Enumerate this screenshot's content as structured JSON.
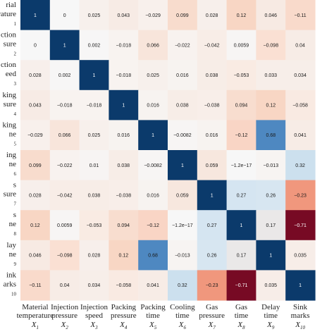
{
  "chart_data": {
    "type": "heatmap",
    "title": "",
    "colors": {
      "positive_max": "#0b3a6b",
      "neutral": "#f7f7f7",
      "negative_max": "#67001f"
    },
    "x_labels": [
      {
        "lines": [
          "Material",
          "temperature"
        ],
        "symbol": "X",
        "sub": "1"
      },
      {
        "lines": [
          "Injection",
          "pressure"
        ],
        "symbol": "X",
        "sub": "2"
      },
      {
        "lines": [
          "Injection",
          "speed"
        ],
        "symbol": "X",
        "sub": "3"
      },
      {
        "lines": [
          "Packing",
          "pressure"
        ],
        "symbol": "X",
        "sub": "4"
      },
      {
        "lines": [
          "Packing",
          "time"
        ],
        "symbol": "X",
        "sub": "5"
      },
      {
        "lines": [
          "Cooling",
          "time"
        ],
        "symbol": "X",
        "sub": "6"
      },
      {
        "lines": [
          "Gas",
          "pressure"
        ],
        "symbol": "X",
        "sub": "7"
      },
      {
        "lines": [
          "Gas",
          "time"
        ],
        "symbol": "X",
        "sub": "8"
      },
      {
        "lines": [
          "Delay",
          "time"
        ],
        "symbol": "X",
        "sub": "9"
      },
      {
        "lines": [
          "Sink",
          "marks"
        ],
        "symbol": "X",
        "sub": "10"
      }
    ],
    "y_labels": [
      {
        "lines": [
          "rial",
          "rature",
          "1"
        ]
      },
      {
        "lines": [
          "ction",
          "sure",
          "2"
        ]
      },
      {
        "lines": [
          "ction",
          "eed",
          "3"
        ]
      },
      {
        "lines": [
          "king",
          "sure",
          "4"
        ]
      },
      {
        "lines": [
          "king",
          "ne",
          "5"
        ]
      },
      {
        "lines": [
          "ing",
          "ne",
          "6"
        ]
      },
      {
        "lines": [
          "s",
          "sure",
          "7"
        ]
      },
      {
        "lines": [
          "s",
          "ne",
          "8"
        ]
      },
      {
        "lines": [
          "lay",
          "ne",
          "9"
        ]
      },
      {
        "lines": [
          "ink",
          "arks",
          "10"
        ]
      }
    ],
    "matrix": [
      [
        1,
        0,
        0.025,
        0.043,
        -0.029,
        0.099,
        0.028,
        0.12,
        0.046,
        -0.11
      ],
      [
        0,
        1,
        0.002,
        -0.018,
        0.066,
        -0.022,
        -0.042,
        0.0059,
        -0.098,
        0.04
      ],
      [
        0.028,
        0.002,
        1,
        -0.018,
        0.025,
        0.016,
        0.038,
        -0.053,
        0.033,
        0.034
      ],
      [
        0.043,
        -0.018,
        -0.018,
        1,
        0.016,
        0.038,
        -0.038,
        0.094,
        0.12,
        -0.058
      ],
      [
        -0.029,
        0.066,
        0.025,
        0.016,
        1,
        -0.0082,
        0.016,
        -0.12,
        0.68,
        0.041
      ],
      [
        0.099,
        -0.022,
        0.01,
        0.038,
        -0.0082,
        1,
        0.059,
        -1.2e-17,
        -0.013,
        0.32
      ],
      [
        0.028,
        -0.042,
        0.038,
        -0.038,
        0.016,
        0.059,
        1,
        0.27,
        0.26,
        -0.23
      ],
      [
        0.12,
        0.0059,
        -0.053,
        0.094,
        -0.12,
        -1.2e-17,
        0.27,
        1,
        0.17,
        -0.71
      ],
      [
        0.046,
        -0.098,
        0.028,
        0.12,
        0.68,
        -0.013,
        0.26,
        0.17,
        1,
        0.035
      ],
      [
        -0.11,
        0.04,
        0.034,
        -0.058,
        0.041,
        0.32,
        -0.23,
        -0.71,
        0.035,
        1
      ]
    ],
    "display": [
      [
        "1",
        "0",
        "0.025",
        "0.043",
        "−0.029",
        "0.099",
        "0.028",
        "0.12",
        "0.046",
        "−0.11"
      ],
      [
        "0",
        "1",
        "0.002",
        "−0.018",
        "0.066",
        "−0.022",
        "−0.042",
        "0.0059",
        "−0.098",
        "0.04"
      ],
      [
        "0.028",
        "0.002",
        "1",
        "−0.018",
        "0.025",
        "0.016",
        "0.038",
        "−0.053",
        "0.033",
        "0.034"
      ],
      [
        "0.043",
        "−0.018",
        "−0.018",
        "1",
        "0.016",
        "0.038",
        "−0.038",
        "0.094",
        "0.12",
        "−0.058"
      ],
      [
        "−0.029",
        "0.066",
        "0.025",
        "0.016",
        "1",
        "−0.0082",
        "0.016",
        "−0.12",
        "0.68",
        "0.041"
      ],
      [
        "0.099",
        "−0.022",
        "0.01",
        "0.038",
        "−0.0082",
        "1",
        "0.059",
        "−1.2e−17",
        "−0.013",
        "0.32"
      ],
      [
        "0.028",
        "−0.042",
        "0.038",
        "−0.038",
        "0.016",
        "0.059",
        "1",
        "0.27",
        "0.26",
        "−0.23"
      ],
      [
        "0.12",
        "0.0059",
        "−0.053",
        "0.094",
        "−0.12",
        "−1.2e−17",
        "0.27",
        "1",
        "0.17",
        "−0.71"
      ],
      [
        "0.046",
        "−0.098",
        "0.028",
        "0.12",
        "0.68",
        "−0.013",
        "0.26",
        "0.17",
        "1",
        "0.035"
      ],
      [
        "−0.11",
        "0.04",
        "0.034",
        "−0.058",
        "0.041",
        "0.32",
        "−0.23",
        "−0.71",
        "0.035",
        "1"
      ]
    ]
  }
}
